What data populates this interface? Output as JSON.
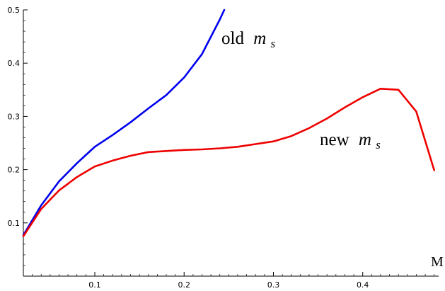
{
  "chart_data": {
    "type": "line",
    "title": "",
    "xlabel": "M",
    "ylabel": "",
    "xlim": [
      0.02,
      0.485
    ],
    "ylim": [
      0.0,
      0.5
    ],
    "x_ticks": [
      0.1,
      0.2,
      0.3,
      0.4
    ],
    "x_tick_labels": [
      "0.1",
      "0.2",
      "0.3",
      "0.4"
    ],
    "y_ticks": [
      0.1,
      0.2,
      0.3,
      0.4,
      0.5
    ],
    "y_tick_labels": [
      "0.1",
      "0.2",
      "0.3",
      "0.4",
      "0.5"
    ],
    "grid": false,
    "legend": "none",
    "series": [
      {
        "label_main": "old",
        "label_var": "m",
        "label_sub": "s",
        "color": "#0000ee",
        "x": [
          0.02,
          0.04,
          0.06,
          0.08,
          0.1,
          0.12,
          0.14,
          0.16,
          0.18,
          0.2,
          0.22,
          0.24,
          0.245
        ],
        "y": [
          0.077,
          0.133,
          0.178,
          0.212,
          0.243,
          0.265,
          0.289,
          0.315,
          0.34,
          0.373,
          0.417,
          0.482,
          0.5
        ]
      },
      {
        "label_main": "new",
        "label_var": "m",
        "label_sub": "s",
        "color": "#ee0000",
        "x": [
          0.02,
          0.04,
          0.06,
          0.08,
          0.1,
          0.12,
          0.14,
          0.16,
          0.18,
          0.2,
          0.22,
          0.24,
          0.26,
          0.28,
          0.3,
          0.32,
          0.34,
          0.36,
          0.38,
          0.4,
          0.42,
          0.44,
          0.46,
          0.48
        ],
        "y": [
          0.075,
          0.126,
          0.161,
          0.186,
          0.206,
          0.217,
          0.226,
          0.233,
          0.235,
          0.237,
          0.238,
          0.24,
          0.243,
          0.248,
          0.253,
          0.263,
          0.278,
          0.296,
          0.317,
          0.336,
          0.352,
          0.35,
          0.309,
          0.199
        ]
      }
    ]
  }
}
